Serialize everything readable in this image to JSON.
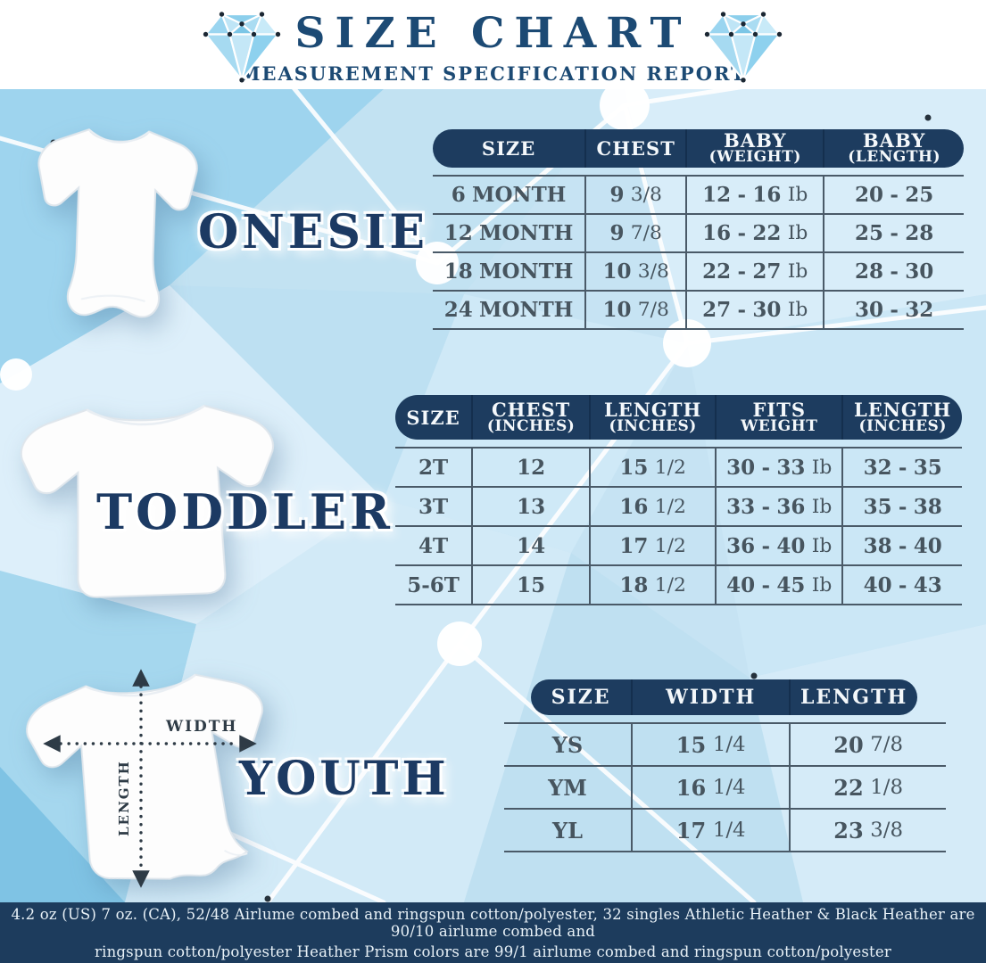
{
  "header": {
    "title": "SIZE CHART",
    "subtitle": "MEASUREMENT SPECIFICATION REPORT"
  },
  "sections": [
    {
      "id": "onesie",
      "label": "ONESIE"
    },
    {
      "id": "toddler",
      "label": "TODDLER"
    },
    {
      "id": "youth",
      "label": "YOUTH"
    }
  ],
  "tables": {
    "onesie": {
      "headers": [
        [
          "SIZE"
        ],
        [
          "CHEST"
        ],
        [
          "BABY",
          "(WEIGHT)"
        ],
        [
          "BABY",
          "(LENGTH)"
        ]
      ],
      "rows": [
        [
          "6 MONTH",
          "9 3/8",
          "12 - 16 Ib",
          "20 - 25"
        ],
        [
          "12 MONTH",
          "9 7/8",
          "16 - 22 Ib",
          "25 - 28"
        ],
        [
          "18 MONTH",
          "10 3/8",
          "22 - 27 Ib",
          "28 - 30"
        ],
        [
          "24 MONTH",
          "10 7/8",
          "27 - 30 Ib",
          "30 - 32"
        ]
      ]
    },
    "toddler": {
      "headers": [
        [
          "SIZE"
        ],
        [
          "CHEST",
          "(INCHES)"
        ],
        [
          "LENGTH",
          "(INCHES)"
        ],
        [
          "FITS",
          "WEIGHT"
        ],
        [
          "LENGTH",
          "(INCHES)"
        ]
      ],
      "rows": [
        [
          "2T",
          "12",
          "15 1/2",
          "30 - 33 Ib",
          "32 - 35"
        ],
        [
          "3T",
          "13",
          "16 1/2",
          "33 - 36 Ib",
          "35 - 38"
        ],
        [
          "4T",
          "14",
          "17 1/2",
          "36 - 40 Ib",
          "38 - 40"
        ],
        [
          "5-6T",
          "15",
          "18 1/2",
          "40 - 45 Ib",
          "40 - 43"
        ]
      ]
    },
    "youth": {
      "headers": [
        [
          "SIZE"
        ],
        [
          "WIDTH"
        ],
        [
          "LENGTH"
        ]
      ],
      "rows": [
        [
          "YS",
          "15 1/4",
          "20 7/8"
        ],
        [
          "YM",
          "16 1/4",
          "22 1/8"
        ],
        [
          "YL",
          "17 1/4",
          "23 3/8"
        ]
      ]
    }
  },
  "measure": {
    "width_label": "WIDTH",
    "length_label": "LENGTH"
  },
  "footer": {
    "lines": [
      "4.2 oz (US) 7 oz. (CA), 52/48 Airlume combed and ringspun cotton/polyester, 32 singles Athletic Heather & Black Heather are 90/10 airlume combed and",
      "ringspun cotton/polyester Heather Prism colors are 99/1 airlume combed and ringspun cotton/polyester"
    ]
  },
  "icons": {
    "left": "diamond-gem-icon",
    "right": "diamond-gem-icon"
  },
  "colors": {
    "navy": "#1d3c5f",
    "title_navy": "#1c4a74",
    "label_navy": "#1c3a63",
    "cell_text": "#47555f",
    "grid_line": "#4a5a68",
    "footer_bg": "#1d3c5d",
    "footer_text": "#e8f1f7",
    "background_blue": "#c6e3f3",
    "gem_blue": "#8fd0ec"
  }
}
